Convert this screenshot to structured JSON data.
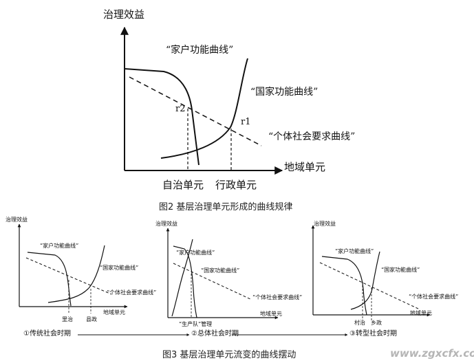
{
  "figure2": {
    "y_axis_label": "治理效益",
    "x_axis_label": "地域单元",
    "household_curve": "“家户功能曲线”",
    "state_curve": "“国家功能曲线”",
    "society_curve": "“个体社会要求曲线”",
    "r1": "r1",
    "r2": "r2",
    "tick_autonomy": "自治单元",
    "tick_admin": "行政单元",
    "caption": "图2 基层治理单元形成的曲线规律"
  },
  "figure3": {
    "panels": [
      {
        "y_axis_label": "治理效益",
        "x_axis_label": "地域单元",
        "household_curve": "“家户功能曲线”",
        "state_curve": "“国家功能曲线”",
        "society_curve": "“个体社会要求曲线”",
        "tick_left": "里治",
        "tick_right": "县政",
        "stage": "①传统社会时期"
      },
      {
        "y_axis_label": "治理效益",
        "x_axis_label": "地域单元",
        "household_curve": "“家户功能曲线”",
        "state_curve": "“国家功能曲线”",
        "society_curve": "“个体社会要求曲线”",
        "tick_label": "“生产队”管理",
        "stage": "②总体社会时期"
      },
      {
        "y_axis_label": "治理效益",
        "x_axis_label": "地域单元",
        "household_curve": "“家户功能曲线”",
        "state_curve": "“国家功能曲线”",
        "society_curve": "“个体社会要求曲线”",
        "tick_left": "村治",
        "tick_right": "乡政",
        "stage": "③转型社会时期"
      }
    ],
    "caption": "图3 基层治理单元流变的曲线摆动"
  },
  "watermark": "www.zgxcfx.com"
}
